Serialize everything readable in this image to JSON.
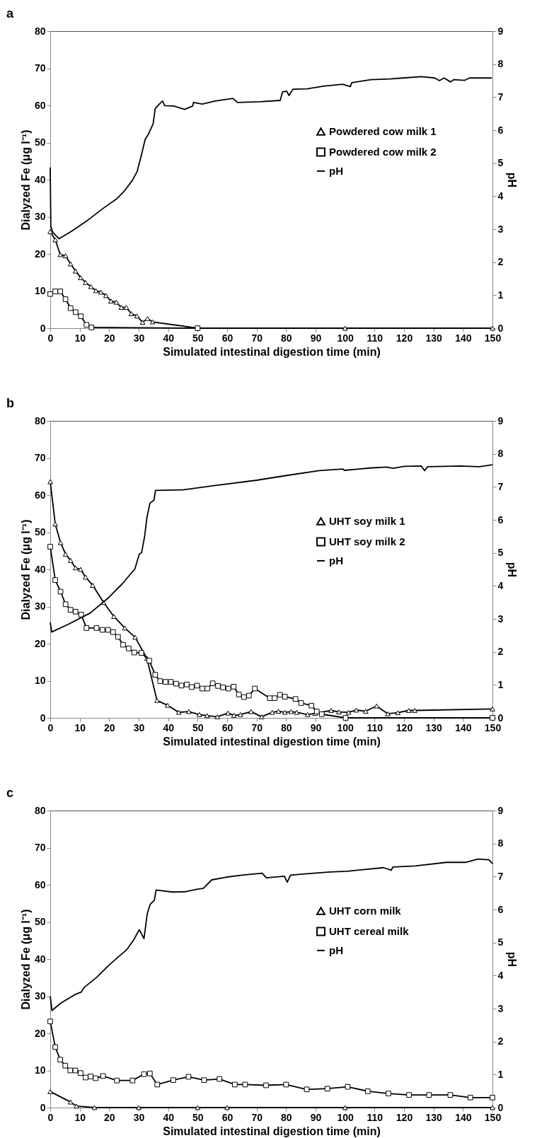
{
  "chart_data": [
    {
      "type": "line",
      "title": "a",
      "xlabel": "Simulated intestinal digestion time (min)",
      "ylabel": "Dialyzed Fe (μg l⁻¹)",
      "y2label": "pH",
      "legend": "right",
      "xlim": [
        0,
        150
      ],
      "xticks": [
        0,
        10,
        20,
        30,
        40,
        50,
        60,
        70,
        80,
        90,
        100,
        110,
        120,
        130,
        140,
        150
      ],
      "ylim": [
        0,
        80
      ],
      "yticks": [
        0,
        10,
        20,
        30,
        40,
        50,
        60,
        70,
        80
      ],
      "y2lim": [
        0,
        9
      ],
      "y2ticks": [
        0,
        1,
        2,
        3,
        4,
        5,
        6,
        7,
        8,
        9
      ],
      "series": [
        {
          "name": "Powdered cow milk 1",
          "color": "#000000",
          "marker": "triangle",
          "x": [
            0,
            1.7,
            3.4,
            5.2,
            6.9,
            8.6,
            10.3,
            12.0,
            13.8,
            15.5,
            17.2,
            18.9,
            20.6,
            22.4,
            24.1,
            25.8,
            27.5,
            29.4,
            31.3,
            33.0,
            34.7,
            50,
            100,
            150
          ],
          "values": [
            26.0,
            23.8,
            19.8,
            19.5,
            17.3,
            15.4,
            13.6,
            12.3,
            11.2,
            10.1,
            9.7,
            8.8,
            7.3,
            7.0,
            5.6,
            5.6,
            3.9,
            3.3,
            1.6,
            2.6,
            1.7,
            0,
            0,
            0
          ]
        },
        {
          "name": "Powdered cow milk 2",
          "color": "#000000",
          "marker": "square",
          "x": [
            0,
            1.7,
            3.4,
            5.2,
            6.9,
            8.6,
            10.4,
            12.3,
            14.0,
            50
          ],
          "values": [
            9.2,
            9.9,
            9.9,
            7.8,
            5.4,
            4.3,
            3.2,
            0.9,
            0.2,
            0
          ]
        },
        {
          "name": "pH",
          "color": "#000000",
          "marker": "none",
          "axis": "y2",
          "x": [
            0,
            0.2,
            0.9,
            3.0,
            7.3,
            12.7,
            18.1,
            22.4,
            25.1,
            27.8,
            29.5,
            31.1,
            32.2,
            33.2,
            34.9,
            35.6,
            37.0,
            38.1,
            38.8,
            41.9,
            45.6,
            48.3,
            48.6,
            51.6,
            55.9,
            62.0,
            63.5,
            71.0,
            78.0,
            78.8,
            80.2,
            81.0,
            82.3,
            87.1,
            92.6,
            99.1,
            101.8,
            102.3,
            108.8,
            115.2,
            119.6,
            126.0,
            130.4,
            132.0,
            133.6,
            135.8,
            136.9,
            140.6,
            142.2,
            149.8
          ],
          "values": [
            4.87,
            3.08,
            2.9,
            2.71,
            2.94,
            3.27,
            3.64,
            3.91,
            4.15,
            4.47,
            4.75,
            5.31,
            5.72,
            5.86,
            6.19,
            6.65,
            6.79,
            6.88,
            6.74,
            6.73,
            6.63,
            6.73,
            6.84,
            6.79,
            6.88,
            6.96,
            6.84,
            6.86,
            6.9,
            7.16,
            7.18,
            7.05,
            7.24,
            7.25,
            7.33,
            7.39,
            7.32,
            7.44,
            7.53,
            7.55,
            7.58,
            7.62,
            7.58,
            7.5,
            7.58,
            7.46,
            7.53,
            7.51,
            7.58,
            7.58
          ]
        }
      ]
    },
    {
      "type": "line",
      "title": "b",
      "xlabel": "Simulated intestinal digestion time (min)",
      "ylabel": "Dialyzed Fe (μg l⁻¹)",
      "y2label": "pH",
      "legend": "right",
      "xlim": [
        0,
        150
      ],
      "xticks": [
        0,
        10,
        20,
        30,
        40,
        50,
        60,
        70,
        80,
        90,
        100,
        110,
        120,
        130,
        140,
        150
      ],
      "ylim": [
        0,
        80
      ],
      "yticks": [
        0,
        10,
        20,
        30,
        40,
        50,
        60,
        70,
        80
      ],
      "y2lim": [
        0,
        9
      ],
      "y2ticks": [
        0,
        1,
        2,
        3,
        4,
        5,
        6,
        7,
        8,
        9
      ],
      "series": [
        {
          "name": "UHT soy milk 1",
          "color": "#000000",
          "marker": "triangle",
          "x": [
            0,
            1.7,
            3.5,
            5.2,
            6.9,
            8.6,
            10.3,
            12.0,
            14.4,
            18.1,
            21.6,
            25.3,
            28.8,
            32.8,
            36.2,
            39.8,
            43.6,
            47.0,
            50.6,
            53.2,
            56.7,
            60.3,
            62.3,
            64.5,
            68.1,
            71.7,
            75.3,
            77.4,
            79.6,
            81.7,
            83.6,
            87.3,
            89.9,
            95.3,
            97.9,
            101.2,
            103.8,
            107.0,
            110.7,
            114.5,
            117.9,
            121.6,
            123.6,
            150
          ],
          "values": [
            63.6,
            52.2,
            47.2,
            44.1,
            42.4,
            40.4,
            40.0,
            37.9,
            35.7,
            31.1,
            27.3,
            24.2,
            21.7,
            16.0,
            4.7,
            3.4,
            1.5,
            1.7,
            0.9,
            0.6,
            0.3,
            1.3,
            0.7,
            0.9,
            1.7,
            0.3,
            1.5,
            1.8,
            1.5,
            1.7,
            1.5,
            0.9,
            1.2,
            2.0,
            1.6,
            1.5,
            2.1,
            1.8,
            3.2,
            1.1,
            1.4,
            2.0,
            2.0,
            2.4
          ]
        },
        {
          "name": "UHT soy milk 2",
          "color": "#000000",
          "marker": "square",
          "x": [
            0,
            1.7,
            3.5,
            5.2,
            6.9,
            8.6,
            10.5,
            12.3,
            15.7,
            17.7,
            19.6,
            21.3,
            23.0,
            24.7,
            26.6,
            28.5,
            30.9,
            33.6,
            35.6,
            37.3,
            39.1,
            40.9,
            42.7,
            44.5,
            46.3,
            48.0,
            49.8,
            51.6,
            53.3,
            55.1,
            56.9,
            58.6,
            60.4,
            62.2,
            64.0,
            65.7,
            67.4,
            69.4,
            74.5,
            76.1,
            77.9,
            79.6,
            83.2,
            85.1,
            88.6,
            90.4,
            92.1,
            100.2,
            150
          ],
          "values": [
            46.1,
            37.1,
            34.0,
            30.6,
            29.1,
            28.6,
            27.8,
            24.2,
            24.2,
            23.7,
            23.7,
            23.1,
            21.8,
            19.7,
            18.7,
            17.6,
            17.5,
            15.4,
            11.6,
            9.9,
            9.7,
            9.7,
            9.2,
            8.7,
            9.0,
            8.3,
            8.7,
            7.9,
            7.9,
            9.3,
            8.6,
            8.2,
            7.9,
            8.4,
            6.3,
            5.6,
            6.0,
            7.9,
            5.3,
            5.3,
            6.2,
            5.7,
            5.1,
            4.0,
            3.3,
            1.7,
            1.0,
            0,
            0
          ]
        },
        {
          "name": "pH",
          "color": "#000000",
          "marker": "none",
          "axis": "y2",
          "x": [
            0,
            0.5,
            6.2,
            13.6,
            20.0,
            24.3,
            28.7,
            30.2,
            31.0,
            32.0,
            32.8,
            33.8,
            35.2,
            35.7,
            45.0,
            55.1,
            70.0,
            80.6,
            91.3,
            99.3,
            99.8,
            108.3,
            114.1,
            116.3,
            120.0,
            125.9,
            127.0,
            128.0,
            139.1,
            145.5,
            150
          ],
          "values": [
            2.89,
            2.6,
            2.84,
            3.18,
            3.66,
            4.05,
            4.51,
            4.96,
            5.01,
            5.49,
            6.07,
            6.5,
            6.6,
            6.89,
            6.91,
            7.03,
            7.2,
            7.35,
            7.49,
            7.54,
            7.5,
            7.57,
            7.6,
            7.56,
            7.62,
            7.63,
            7.49,
            7.61,
            7.63,
            7.61,
            7.67
          ]
        }
      ]
    },
    {
      "type": "line",
      "title": "c",
      "xlabel": "Simulated intestinal digestion time (min)",
      "ylabel": "Dialyzed Fe (μg l⁻¹)",
      "y2label": "pH",
      "legend": "right",
      "xlim": [
        0,
        150
      ],
      "xticks": [
        0,
        10,
        20,
        30,
        40,
        50,
        60,
        70,
        80,
        90,
        100,
        110,
        120,
        130,
        140,
        150
      ],
      "ylim": [
        0,
        80
      ],
      "yticks": [
        0,
        10,
        20,
        30,
        40,
        50,
        60,
        70,
        80
      ],
      "y2lim": [
        0,
        9
      ],
      "y2ticks": [
        0,
        1,
        2,
        3,
        4,
        5,
        6,
        7,
        8,
        9
      ],
      "series": [
        {
          "name": "UHT corn milk",
          "color": "#000000",
          "marker": "triangle",
          "x": [
            0,
            6.9,
            8.9,
            15,
            30,
            50,
            60,
            100,
            150
          ],
          "values": [
            4.3,
            1.5,
            0.4,
            0,
            0,
            0,
            0,
            0,
            0
          ]
        },
        {
          "name": "UHT cereal milk",
          "color": "#000000",
          "marker": "square",
          "x": [
            0,
            1.7,
            3.4,
            5.1,
            6.8,
            8.5,
            10.3,
            12.0,
            13.7,
            15.4,
            17.9,
            22.6,
            27.9,
            31.8,
            33.8,
            36.3,
            41.7,
            46.9,
            52.2,
            57.4,
            62.6,
            66.1,
            73.2,
            80.0,
            87.0,
            94.0,
            100.9,
            107.7,
            114.7,
            121.7,
            128.5,
            135.7,
            142.5,
            150
          ],
          "values": [
            23.2,
            16.3,
            12.9,
            11.3,
            10.0,
            10.0,
            9.3,
            8.1,
            8.4,
            7.9,
            8.5,
            7.3,
            7.3,
            9.0,
            9.2,
            6.2,
            7.4,
            8.3,
            7.4,
            7.7,
            6.2,
            6.2,
            6.0,
            6.2,
            4.9,
            5.1,
            5.6,
            4.4,
            3.8,
            3.4,
            3.4,
            3.4,
            2.7,
            2.7
          ]
        },
        {
          "name": "pH",
          "color": "#000000",
          "marker": "none",
          "axis": "y2",
          "x": [
            0,
            0.6,
            3.5,
            8.3,
            10.5,
            11.5,
            15.8,
            20.1,
            23.8,
            25.9,
            28.1,
            30.2,
            31.8,
            32.9,
            33.9,
            35.3,
            35.9,
            41.5,
            45.7,
            50.0,
            51.9,
            54.8,
            59.6,
            64.9,
            71.9,
            73.3,
            76.7,
            79.4,
            80.4,
            81.5,
            86.3,
            94.9,
            100.7,
            113.0,
            115.7,
            116.2,
            123.7,
            134.4,
            140.8,
            145.1,
            148.8,
            150
          ],
          "values": [
            3.37,
            2.94,
            3.16,
            3.42,
            3.5,
            3.64,
            3.95,
            4.33,
            4.62,
            4.78,
            5.05,
            5.39,
            5.12,
            5.87,
            6.16,
            6.28,
            6.59,
            6.53,
            6.54,
            6.62,
            6.64,
            6.9,
            6.98,
            7.04,
            7.1,
            6.96,
            6.99,
            7.01,
            6.83,
            7.04,
            7.08,
            7.14,
            7.16,
            7.27,
            7.19,
            7.29,
            7.32,
            7.43,
            7.43,
            7.53,
            7.51,
            7.39
          ]
        }
      ]
    }
  ]
}
